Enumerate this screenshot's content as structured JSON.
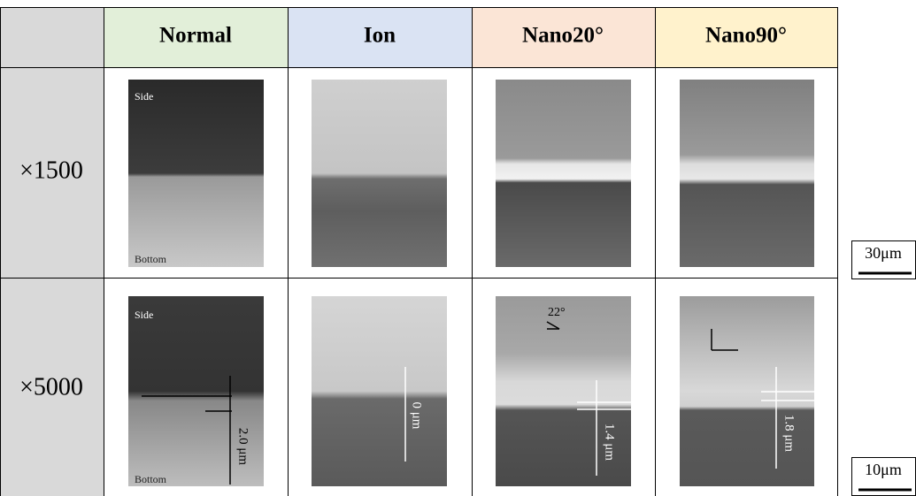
{
  "table": {
    "columns": [
      "Normal",
      "Ion",
      "Nano20°",
      "Nano90°"
    ],
    "rows": [
      {
        "label": "×1500",
        "scale_bar": "30μm",
        "annotations": {
          "Normal": [
            "Side",
            "Bottom"
          ]
        }
      },
      {
        "label": "×5000",
        "scale_bar": "10μm",
        "annotations": {
          "Normal": [
            "Side",
            "Bottom",
            "2.0 μm"
          ],
          "Ion": [
            "0 μm"
          ],
          "Nano20°": [
            "22°",
            "1.4 μm"
          ],
          "Nano90°": [
            "1.8 μm"
          ]
        }
      }
    ]
  }
}
